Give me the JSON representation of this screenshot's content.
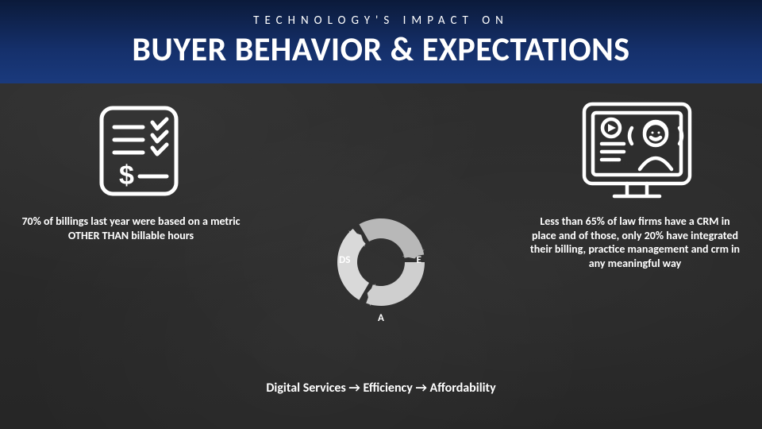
{
  "header": {
    "subtitle": "TECHNOLOGY'S IMPACT ON",
    "title": "BUYER BEHAVIOR & EXPECTATIONS",
    "bg_gradient": [
      "#0b1a3a",
      "#15306b",
      "#1a3a7d"
    ],
    "text_color": "#ffffff",
    "subtitle_fontsize": 15,
    "subtitle_letterspacing": 7,
    "title_fontsize": 42
  },
  "background": {
    "base_color": "#2a2a2a",
    "type": "chalkboard"
  },
  "left_panel": {
    "icon": "invoice-checklist-dollar-icon",
    "icon_color": "#ffffff",
    "text": "70% of billings last year were based on a metric OTHER THAN billable hours",
    "text_color": "#ffffff",
    "text_fontsize": 14,
    "text_weight": 700
  },
  "right_panel": {
    "icon": "webinar-person-screen-icon",
    "icon_color": "#ffffff",
    "text": "Less than 65% of law firms have a CRM in place and of those, only 20% have integrated their billing, practice management and crm in any meaningful way",
    "text_color": "#ffffff",
    "text_fontsize": 14,
    "text_weight": 700
  },
  "ring": {
    "type": "cycle-ring",
    "segments": [
      {
        "label": "DS",
        "color": "#d9d9d9",
        "start_deg": 210,
        "sweep_deg": 110
      },
      {
        "label": "E",
        "color": "#b8b8b8",
        "start_deg": 330,
        "sweep_deg": 110
      },
      {
        "label": "A",
        "color": "#cfcfcf",
        "start_deg": 90,
        "sweep_deg": 110
      }
    ],
    "outer_radius": 55,
    "inner_radius": 30,
    "gap_deg": 10,
    "label_color": "#ffffff",
    "label_fontsize": 13
  },
  "flow": {
    "text": "Digital Services → Efficiency → Affordability",
    "color": "#ffffff",
    "fontsize": 16,
    "weight": 700
  }
}
